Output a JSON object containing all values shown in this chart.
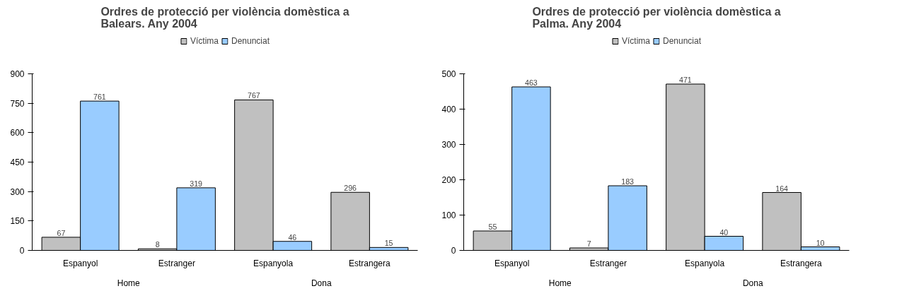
{
  "chart_data": [
    {
      "type": "bar",
      "title": "Ordres de protecció per violència domèstica a Balears. Any 2004",
      "categories": [
        "Espanyol",
        "Estranger",
        "Espanyola",
        "Estrangera"
      ],
      "series": [
        {
          "name": "Víctima",
          "color": "#c0c0c0",
          "values": [
            67,
            8,
            767,
            296
          ]
        },
        {
          "name": "Denunciat",
          "color": "#99ccff",
          "values": [
            761,
            319,
            46,
            15
          ]
        }
      ],
      "ylim": [
        0,
        900
      ],
      "yticks": [
        0,
        150,
        300,
        450,
        600,
        750,
        900
      ],
      "data_labels": true,
      "legend": "top",
      "grid": false,
      "annotations": [
        "Home",
        "Dona"
      ]
    },
    {
      "type": "bar",
      "title": "Ordres de protecció per violència domèstica a Palma. Any 2004",
      "categories": [
        "Espanyol",
        "Estranger",
        "Espanyola",
        "Estrangera"
      ],
      "series": [
        {
          "name": "Víctima",
          "color": "#c0c0c0",
          "values": [
            55,
            7,
            471,
            164
          ]
        },
        {
          "name": "Denunciat",
          "color": "#99ccff",
          "values": [
            463,
            183,
            40,
            10
          ]
        }
      ],
      "ylim": [
        0,
        500
      ],
      "yticks": [
        0,
        100,
        200,
        300,
        400,
        500
      ],
      "data_labels": true,
      "legend": "top",
      "grid": false,
      "annotations": [
        "Home",
        "Dona"
      ]
    }
  ]
}
